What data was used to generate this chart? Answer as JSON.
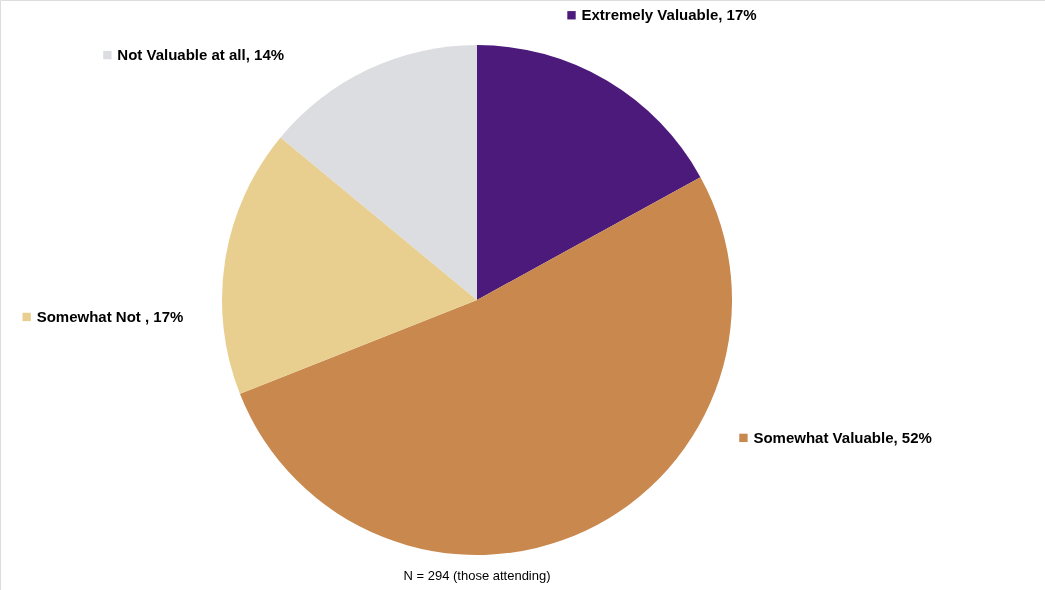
{
  "chart_data": {
    "type": "pie",
    "categories": [
      "Extremely Valuable",
      "Somewhat Valuable",
      "Somewhat Not ",
      "Not Valuable at all"
    ],
    "values": [
      17,
      52,
      17,
      14
    ],
    "colors": [
      "#4b1a7a",
      "#c8884e",
      "#e8cf8f",
      "#dcdde0"
    ],
    "value_labels": [
      "17%",
      "52%",
      "17%",
      "14%"
    ],
    "annotations": [
      "N = 294 (those attending)"
    ],
    "legend": "right"
  }
}
